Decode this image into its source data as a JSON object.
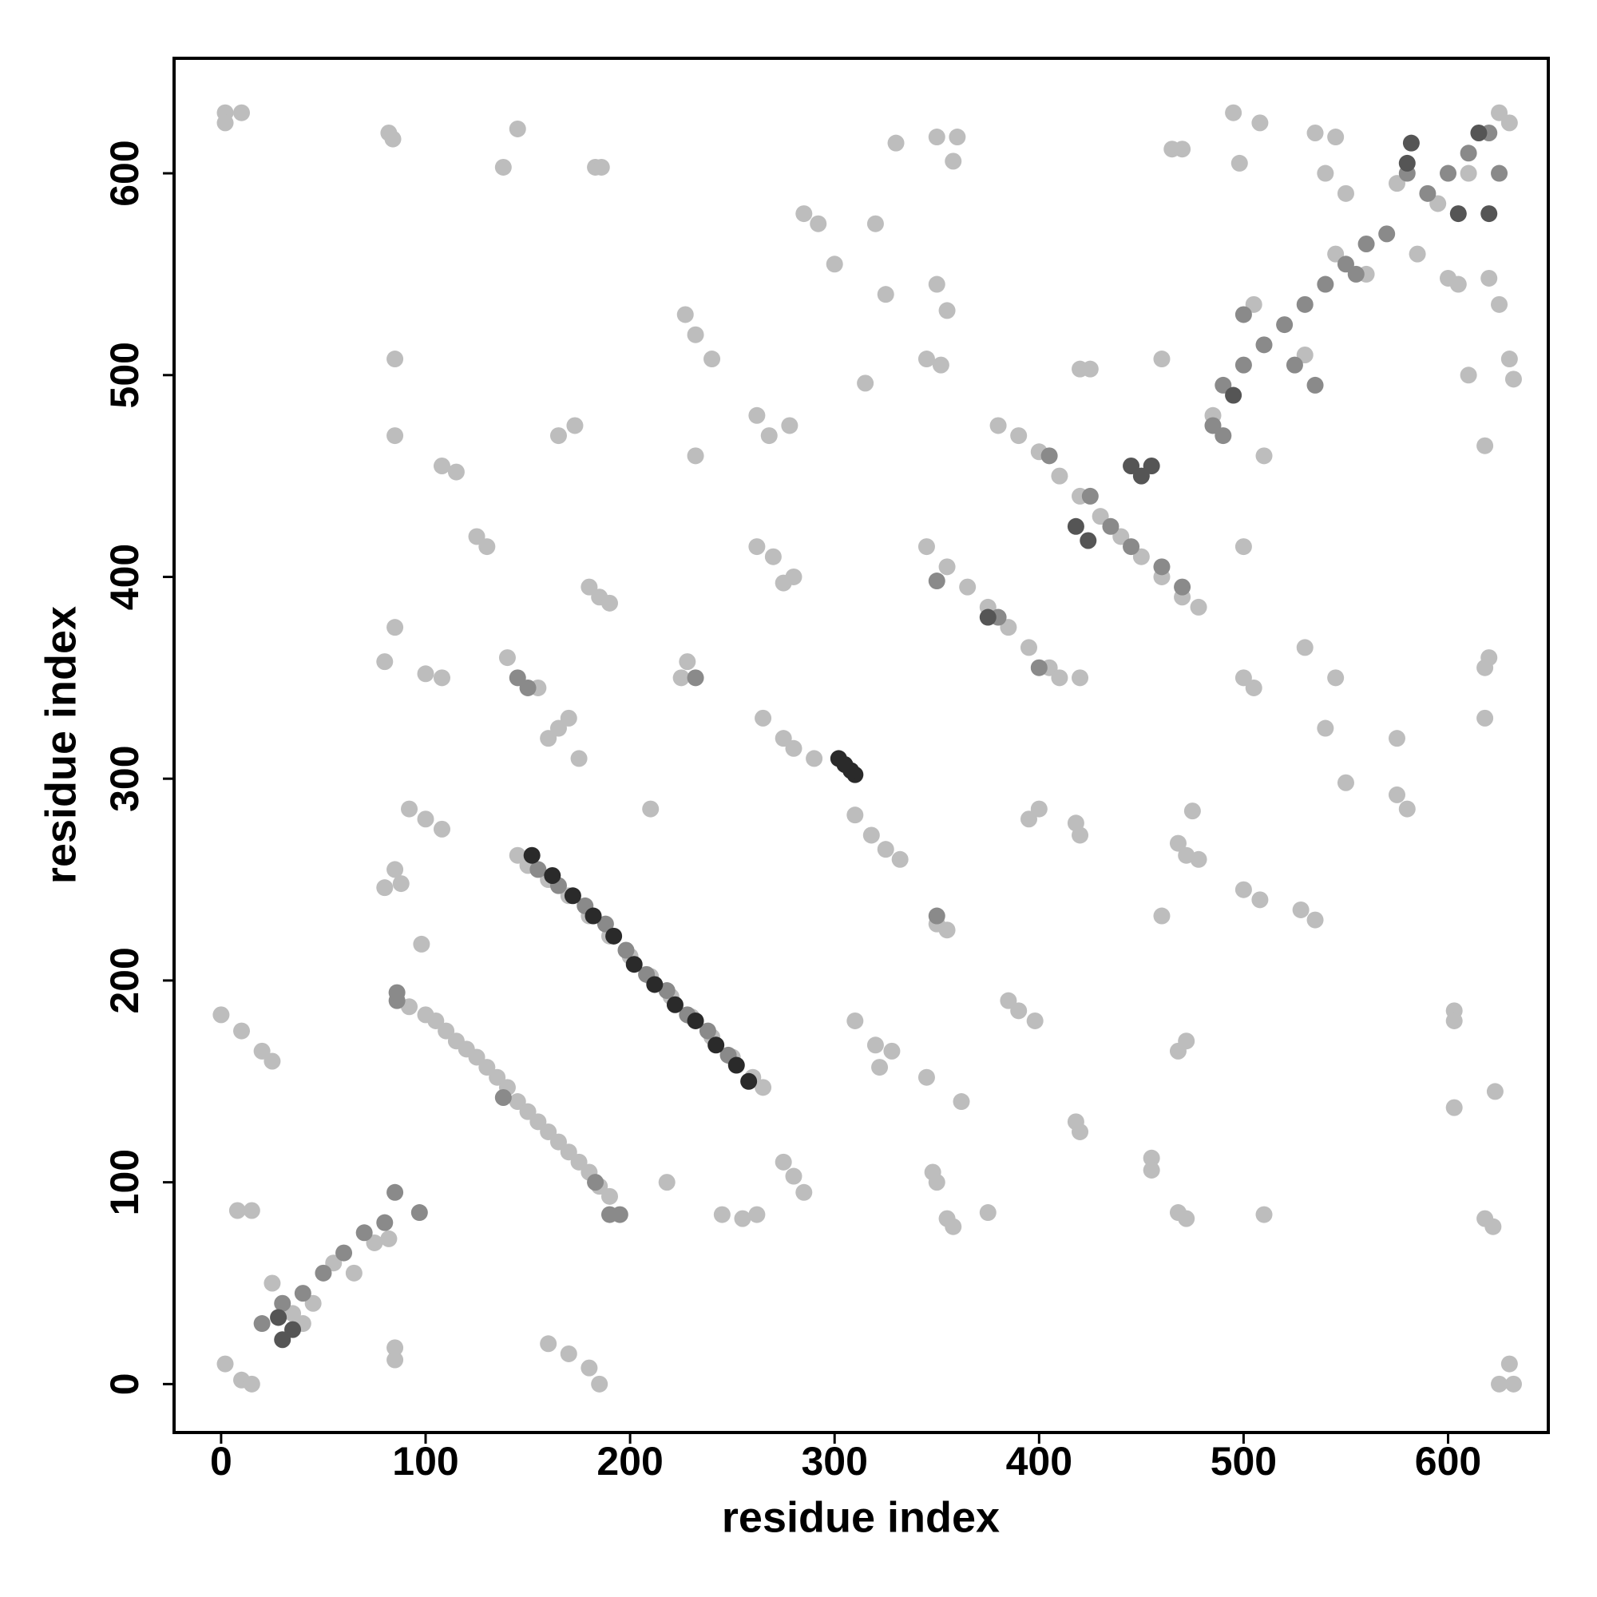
{
  "chart_data": {
    "type": "scatter",
    "x_label": "residue index",
    "y_label": "residue index",
    "xlim": [
      -23,
      649
    ],
    "ylim": [
      -24,
      657
    ],
    "xticks": [
      0,
      100,
      200,
      300,
      400,
      500,
      600
    ],
    "yticks": [
      0,
      100,
      200,
      300,
      400,
      500,
      600
    ],
    "grid": false,
    "series": [
      {
        "color": "#bdbdbd",
        "x": [
          2,
          2,
          10,
          82,
          84,
          145,
          138,
          183,
          186,
          145,
          150,
          160,
          170,
          180,
          190,
          200,
          210,
          220,
          230,
          240,
          250,
          260,
          265,
          92,
          100,
          105,
          110,
          115,
          120,
          125,
          130,
          135,
          140,
          145,
          150,
          155,
          160,
          165,
          170,
          175,
          180,
          185,
          190,
          25,
          35,
          45,
          55,
          65,
          75,
          82,
          40,
          485,
          505,
          530,
          545,
          560,
          575,
          595,
          610,
          625,
          630,
          380,
          390,
          400,
          410,
          420,
          430,
          440,
          450,
          460,
          470,
          478,
          345,
          355,
          365,
          375,
          385,
          395,
          405,
          410,
          420,
          0,
          10,
          20,
          25,
          160,
          170,
          180,
          185,
          2,
          10,
          15,
          85,
          85,
          80,
          85,
          85,
          85,
          108,
          115,
          125,
          130,
          100,
          108,
          92,
          100,
          108,
          85,
          88,
          80,
          98,
          8,
          15,
          160,
          165,
          170,
          175,
          140,
          155,
          165,
          173,
          180,
          185,
          190,
          228,
          225,
          210,
          218,
          227,
          232,
          240,
          232,
          262,
          268,
          262,
          270,
          275,
          280,
          278,
          265,
          275,
          280,
          290,
          275,
          280,
          285,
          245,
          255,
          262,
          285,
          292,
          300,
          320,
          315,
          325,
          330,
          310,
          318,
          325,
          332,
          320,
          328,
          322,
          310,
          350,
          352,
          345,
          355,
          350,
          360,
          358,
          350,
          355,
          345,
          348,
          350,
          355,
          358,
          362,
          375,
          395,
          400,
          418,
          420,
          385,
          390,
          398,
          418,
          420,
          420,
          425,
          455,
          455,
          460,
          460,
          465,
          470,
          468,
          472,
          478,
          472,
          468,
          468,
          472,
          475,
          495,
          498,
          508,
          500,
          500,
          505,
          500,
          508,
          510,
          510,
          528,
          535,
          530,
          545,
          540,
          550,
          535,
          545,
          540,
          550,
          575,
          575,
          580,
          585,
          600,
          605,
          610,
          618,
          620,
          625,
          630,
          632,
          603,
          603,
          603,
          618,
          620,
          618,
          618,
          622,
          623,
          625,
          630,
          632
        ],
        "y": [
          630,
          625,
          630,
          620,
          617,
          622,
          603,
          603,
          603,
          262,
          257,
          250,
          242,
          232,
          222,
          212,
          202,
          192,
          182,
          172,
          162,
          152,
          147,
          187,
          183,
          180,
          175,
          170,
          166,
          162,
          157,
          152,
          147,
          140,
          135,
          130,
          125,
          120,
          115,
          110,
          105,
          98,
          93,
          50,
          35,
          40,
          60,
          55,
          70,
          72,
          30,
          480,
          535,
          510,
          560,
          550,
          595,
          585,
          600,
          630,
          625,
          475,
          470,
          462,
          450,
          440,
          430,
          420,
          410,
          400,
          390,
          385,
          415,
          405,
          395,
          385,
          375,
          365,
          355,
          350,
          350,
          183,
          175,
          165,
          160,
          20,
          15,
          8,
          0,
          10,
          2,
          0,
          18,
          12,
          358,
          375,
          508,
          470,
          455,
          452,
          420,
          415,
          352,
          350,
          285,
          280,
          275,
          255,
          248,
          246,
          218,
          86,
          86,
          320,
          325,
          330,
          310,
          360,
          345,
          470,
          475,
          395,
          390,
          387,
          358,
          350,
          285,
          100,
          530,
          520,
          508,
          460,
          480,
          470,
          415,
          410,
          397,
          400,
          475,
          330,
          320,
          315,
          310,
          110,
          103,
          95,
          84,
          82,
          84,
          580,
          575,
          555,
          575,
          496,
          540,
          615,
          282,
          272,
          265,
          260,
          168,
          165,
          157,
          180,
          545,
          505,
          508,
          532,
          618,
          618,
          606,
          228,
          225,
          152,
          105,
          100,
          82,
          78,
          140,
          85,
          280,
          285,
          278,
          272,
          190,
          185,
          180,
          130,
          125,
          503,
          503,
          112,
          106,
          232,
          508,
          612,
          612,
          268,
          262,
          260,
          170,
          165,
          85,
          82,
          284,
          630,
          605,
          625,
          415,
          350,
          345,
          245,
          240,
          84,
          460,
          235,
          230,
          365,
          350,
          325,
          298,
          620,
          618,
          600,
          590,
          320,
          292,
          285,
          560,
          548,
          545,
          500,
          465,
          548,
          535,
          508,
          498,
          185,
          180,
          137,
          330,
          360,
          355,
          82,
          78,
          145,
          0,
          10,
          0
        ]
      },
      {
        "color": "#8a8a8a",
        "x": [
          20,
          30,
          40,
          50,
          60,
          70,
          80,
          85,
          97,
          490,
          500,
          510,
          520,
          530,
          540,
          550,
          560,
          570,
          580,
          590,
          600,
          610,
          620,
          525,
          500,
          535,
          555,
          155,
          165,
          178,
          188,
          198,
          208,
          218,
          228,
          238,
          248,
          86,
          86,
          138,
          190,
          195,
          183,
          405,
          425,
          435,
          445,
          460,
          470,
          350,
          380,
          400,
          145,
          150,
          232,
          350,
          485,
          490,
          625
        ],
        "y": [
          30,
          40,
          45,
          55,
          65,
          75,
          80,
          95,
          85,
          495,
          505,
          515,
          525,
          535,
          545,
          555,
          565,
          570,
          600,
          590,
          600,
          610,
          620,
          505,
          530,
          495,
          550,
          255,
          247,
          237,
          228,
          215,
          203,
          195,
          183,
          175,
          163,
          190,
          194,
          142,
          84,
          84,
          100,
          460,
          440,
          425,
          415,
          405,
          395,
          398,
          380,
          355,
          350,
          345,
          350,
          232,
          475,
          470,
          600
        ]
      },
      {
        "color": "#555555",
        "x": [
          28,
          35,
          30,
          495,
          582,
          615,
          605,
          620,
          580,
          418,
          424,
          455,
          450,
          445,
          375
        ],
        "y": [
          33,
          27,
          22,
          490,
          615,
          620,
          580,
          580,
          605,
          425,
          418,
          455,
          450,
          455,
          380
        ]
      },
      {
        "color": "#2a2a2a",
        "x": [
          152,
          162,
          172,
          182,
          192,
          202,
          212,
          222,
          232,
          242,
          252,
          258,
          302,
          305,
          310,
          308
        ],
        "y": [
          262,
          252,
          242,
          232,
          222,
          208,
          198,
          188,
          180,
          168,
          158,
          150,
          310,
          307,
          302,
          304
        ]
      }
    ]
  }
}
